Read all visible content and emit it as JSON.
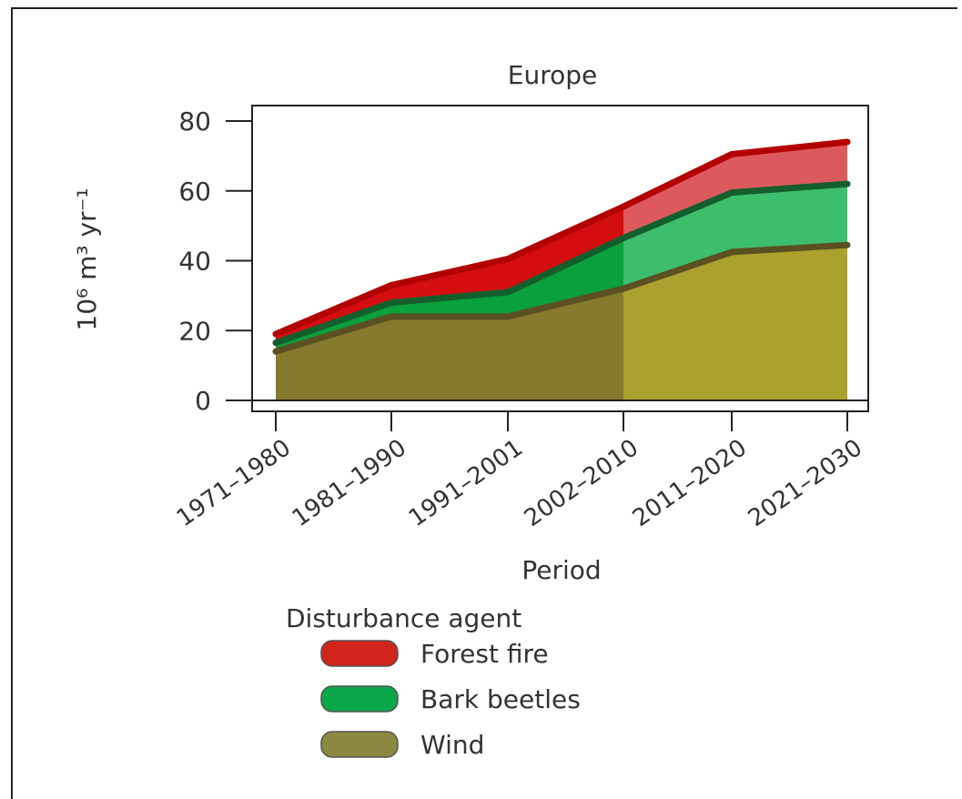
{
  "chart_data": {
    "type": "area",
    "stacked": true,
    "title": "Europe",
    "xlabel": "Period",
    "ylabel": "10⁶ m³ yr⁻¹",
    "categories": [
      "1971–1980",
      "1981–1990",
      "1991–2001",
      "2002–2010",
      "2011–2020",
      "2021–2030"
    ],
    "ylim": [
      0,
      80
    ],
    "yticks": [
      0,
      20,
      40,
      60,
      80
    ],
    "observed_through": "2002–2010",
    "series": [
      {
        "name": "Wind",
        "values": [
          14,
          24,
          24,
          32,
          42.5,
          44.5
        ],
        "color": "#867a2e",
        "projected_color": "#aaa12e",
        "line_color": "#5b5022"
      },
      {
        "name": "Bark beetles",
        "values": [
          2.5,
          4,
          7,
          14.5,
          17,
          17.5
        ],
        "color": "#0aa03c",
        "projected_color": "#3dbe6c",
        "line_color": "#135f2c"
      },
      {
        "name": "Forest fire",
        "values": [
          2.5,
          5,
          9.5,
          9,
          11,
          12
        ],
        "color": "#d40e10",
        "projected_color": "#dc5a5e",
        "line_color": "#b30000"
      }
    ],
    "legend": {
      "title": "Disturbance agent",
      "position": "bottom",
      "items": [
        {
          "label": "Forest fire",
          "color": "#d0241d"
        },
        {
          "label": "Bark beetles",
          "color": "#0aa64a"
        },
        {
          "label": "Wind",
          "color": "#8b8842"
        }
      ]
    }
  }
}
